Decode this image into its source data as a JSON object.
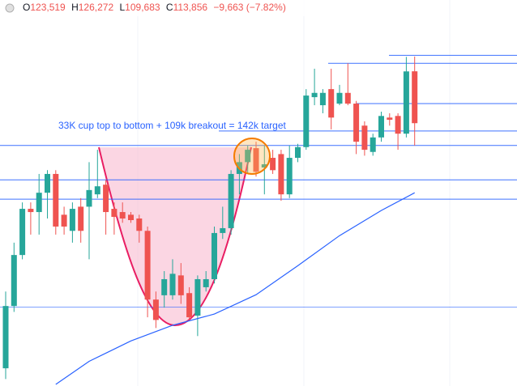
{
  "chart_data": {
    "type": "candlestick",
    "header": {
      "open_label": "O",
      "open": "123,519",
      "high_label": "H",
      "high": "126,272",
      "low_label": "L",
      "low": "109,683",
      "close_label": "C",
      "close": "113,856",
      "change": "−9,663 (−7.82%)"
    },
    "annotation": "33K cup top to bottom + 109k breakout = 142k target",
    "up_color": "#26a69a",
    "down_color": "#ef5350",
    "ylim": [
      64900,
      136800
    ],
    "open": [
      68200,
      79800,
      89300,
      97900,
      97300,
      100900,
      104400,
      96800,
      93800,
      98300,
      98300,
      100600,
      102400,
      97900,
      97300,
      96800,
      96100,
      93800,
      81000,
      81800,
      81800,
      85500,
      82200,
      78000,
      83300,
      84800,
      93400,
      94300,
      104400,
      106600,
      109200,
      105600,
      107400,
      108100,
      100600,
      107400,
      109400,
      118700,
      117200,
      120200,
      117500,
      119500,
      117500,
      113400,
      108500,
      111200,
      114900,
      115200,
      111900,
      123519
    ],
    "high": [
      82500,
      91600,
      99100,
      99100,
      104400,
      105100,
      105100,
      98300,
      99100,
      99900,
      106600,
      108900,
      103300,
      99100,
      99100,
      97300,
      96800,
      94600,
      82500,
      86300,
      88500,
      87800,
      83300,
      85500,
      86300,
      94600,
      98300,
      105100,
      108100,
      109700,
      110400,
      109700,
      108900,
      108900,
      109700,
      110000,
      120200,
      124000,
      120200,
      124000,
      121000,
      125000,
      118000,
      114200,
      111900,
      116000,
      115700,
      115700,
      126200,
      126272
    ],
    "low": [
      66200,
      78700,
      88500,
      93100,
      93100,
      96100,
      93100,
      93100,
      91600,
      91600,
      88500,
      99900,
      93100,
      93100,
      95300,
      95300,
      91600,
      77700,
      75700,
      79500,
      81000,
      80200,
      77200,
      74200,
      82500,
      84000,
      92300,
      93100,
      100600,
      104400,
      103900,
      100600,
      104400,
      99400,
      99900,
      106600,
      108900,
      117200,
      115700,
      112700,
      117200,
      117200,
      108100,
      107800,
      107800,
      110400,
      113400,
      108900,
      111200,
      109683
    ],
    "close": [
      79800,
      89300,
      97900,
      97300,
      100900,
      104400,
      94600,
      94600,
      97900,
      93800,
      101400,
      102100,
      97300,
      96400,
      96100,
      95800,
      93800,
      81000,
      77200,
      84800,
      85800,
      81800,
      77700,
      84800,
      84800,
      93400,
      94300,
      104400,
      106600,
      108900,
      104800,
      106200,
      105100,
      100600,
      107400,
      109400,
      119000,
      119500,
      119500,
      114900,
      119500,
      117500,
      110400,
      108900,
      111200,
      115200,
      114500,
      111900,
      123500,
      113856
    ],
    "moving_average": {
      "color": "#2962ff",
      "x": [
        6,
        10,
        15,
        20,
        25,
        30,
        35,
        40,
        45,
        49
      ],
      "values": [
        65200,
        69500,
        73300,
        76200,
        78300,
        81900,
        87300,
        92900,
        97600,
        100900
      ]
    },
    "levels": {
      "color": "#2962ff",
      "values": [
        126500,
        125000,
        117500,
        112400,
        109700,
        103300,
        99700,
        79600
      ]
    }
  }
}
